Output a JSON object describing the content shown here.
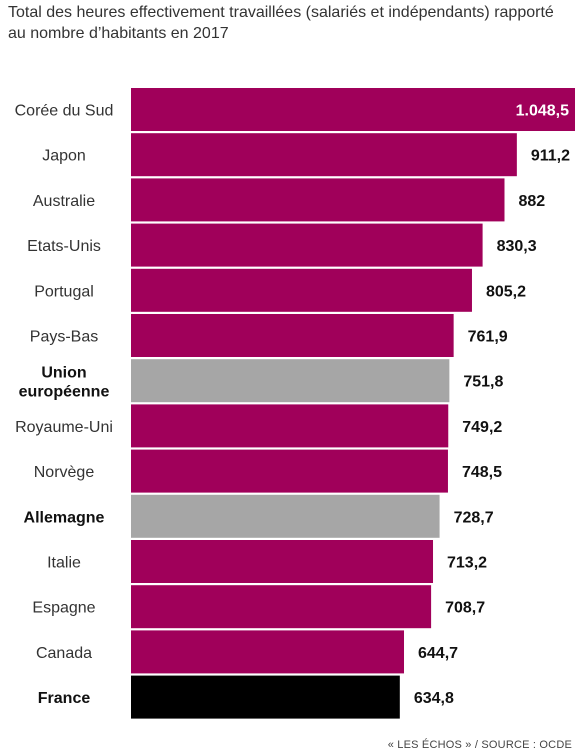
{
  "chart_data": {
    "type": "bar",
    "orientation": "horizontal",
    "title": "Total des heures effectivement travaillées (salariés et indépendants) rapporté au nombre d’habitants en 2017",
    "xlim": [
      0,
      1048.5
    ],
    "grid": false,
    "categories": [
      "Corée du Sud",
      "Japon",
      "Australie",
      "Etats-Unis",
      "Portugal",
      "Pays-Bas",
      "Union européenne",
      "Royaume-Uni",
      "Norvège",
      "Allemagne",
      "Italie",
      "Espagne",
      "Canada",
      "France"
    ],
    "values": [
      1048.5,
      911.2,
      882,
      830.3,
      805.2,
      761.9,
      751.8,
      749.2,
      748.5,
      728.7,
      713.2,
      708.7,
      644.7,
      634.8
    ],
    "value_labels": [
      "1.048,5",
      "911,2",
      "882",
      "830,3",
      "805,2",
      "761,9",
      "751,8",
      "749,2",
      "748,5",
      "728,7",
      "713,2",
      "708,7",
      "644,7",
      "634,8"
    ],
    "bar_colors": [
      "#a0005a",
      "#a0005a",
      "#a0005a",
      "#a0005a",
      "#a0005a",
      "#a0005a",
      "#a6a6a6",
      "#a0005a",
      "#a0005a",
      "#a6a6a6",
      "#a0005a",
      "#a0005a",
      "#a0005a",
      "#000000"
    ],
    "bold_categories": [
      "Union européenne",
      "Allemagne",
      "France"
    ]
  },
  "source": "« LES ÉCHOS » / SOURCE : OCDE"
}
